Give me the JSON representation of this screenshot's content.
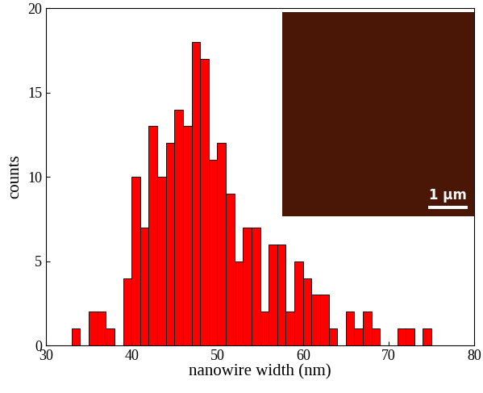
{
  "chart_data": {
    "type": "histogram",
    "x_label": "nanowire width (nm)",
    "y_label": "counts",
    "bins": [
      33,
      34,
      35,
      36,
      37,
      38,
      39,
      40,
      41,
      42,
      43,
      44,
      45,
      46,
      47,
      48,
      49,
      50,
      51,
      52,
      53,
      54,
      55,
      56,
      57,
      58,
      59,
      60,
      61,
      62,
      63,
      64,
      65,
      66,
      67,
      68,
      69,
      70,
      71,
      72,
      73,
      74,
      75
    ],
    "counts": [
      1,
      0,
      2,
      2,
      1,
      0,
      4,
      10,
      7,
      13,
      10,
      12,
      14,
      13,
      18,
      17,
      11,
      12,
      9,
      5,
      7,
      7,
      2,
      6,
      6,
      2,
      5,
      4,
      3,
      3,
      1,
      0,
      2,
      1,
      2,
      1,
      0,
      0,
      1,
      1,
      0,
      1
    ],
    "color": "#ff0000",
    "xlim": [
      30,
      80
    ],
    "xticks": [
      30,
      40,
      50,
      60,
      70,
      80
    ],
    "ylim": [
      0,
      20
    ],
    "yticks": [
      0,
      5,
      10,
      15,
      20
    ],
    "grid": false,
    "annotations": [
      "1 μm"
    ]
  }
}
